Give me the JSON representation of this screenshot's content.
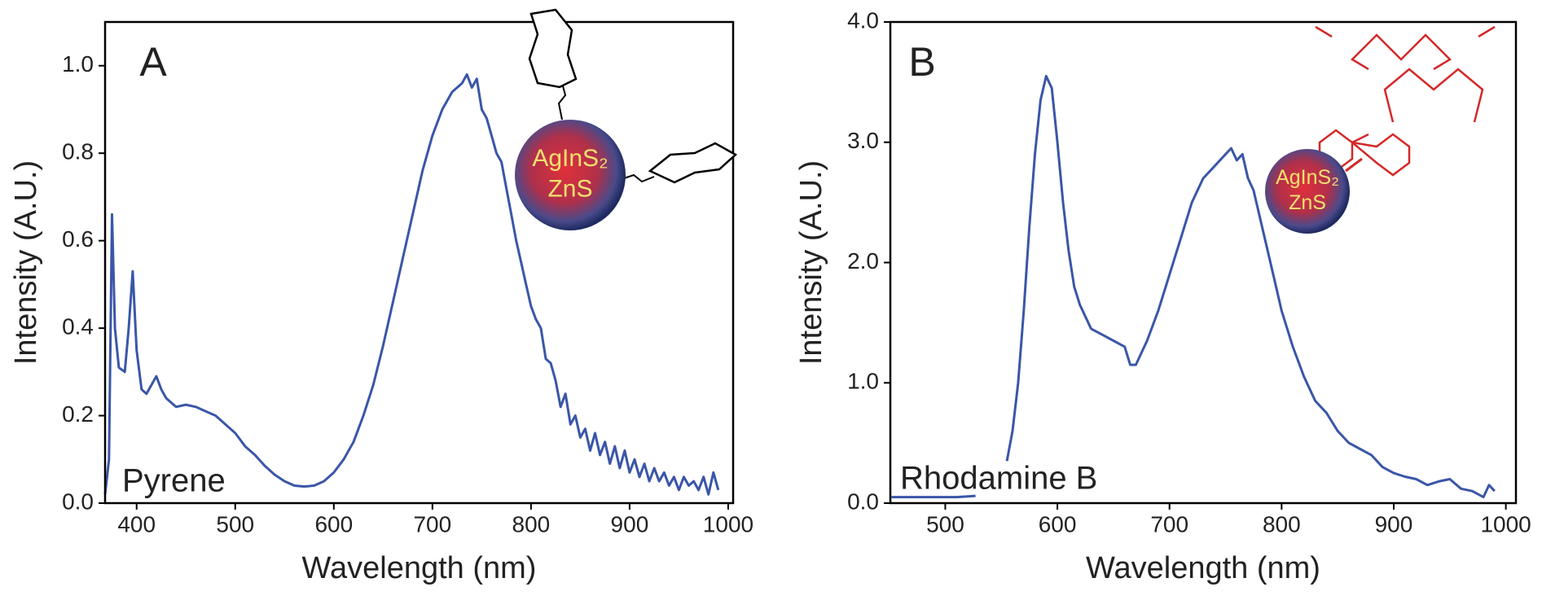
{
  "chart_data": [
    {
      "type": "line",
      "panel_label": "A",
      "dye_label": "Pyrene",
      "core_labels": [
        "AgInS₂",
        "ZnS"
      ],
      "xlabel": "Wavelength (nm)",
      "ylabel": "Intensity (A.U.)",
      "xlim": [
        368,
        1005
      ],
      "ylim": [
        0,
        1.1
      ],
      "xticks": [
        400,
        500,
        600,
        700,
        800,
        900,
        1000
      ],
      "yticks": [
        {
          "value": 0,
          "label": "0.0"
        },
        {
          "value": 0.2,
          "label": "0.2"
        },
        {
          "value": 0.4,
          "label": "0.4"
        },
        {
          "value": 0.6,
          "label": "0.6"
        },
        {
          "value": 0.8,
          "label": "0.8"
        },
        {
          "value": 1.0,
          "label": "1.0"
        }
      ],
      "series": [
        {
          "color": "#3a56a8",
          "x": [
            368,
            372,
            375,
            378,
            382,
            388,
            392,
            396,
            400,
            405,
            410,
            415,
            420,
            425,
            430,
            440,
            450,
            460,
            470,
            480,
            490,
            500,
            510,
            520,
            530,
            540,
            550,
            560,
            570,
            580,
            590,
            600,
            610,
            620,
            630,
            640,
            650,
            660,
            670,
            680,
            690,
            700,
            710,
            720,
            730,
            735,
            740,
            745,
            750,
            755,
            760,
            765,
            770,
            775,
            780,
            785,
            790,
            795,
            800,
            805,
            810,
            815,
            820,
            825,
            830,
            835,
            840,
            845,
            850,
            855,
            860,
            865,
            870,
            875,
            880,
            885,
            890,
            895,
            900,
            905,
            910,
            915,
            920,
            925,
            930,
            935,
            940,
            945,
            950,
            955,
            960,
            965,
            970,
            975,
            980,
            985,
            990
          ],
          "values": [
            0.02,
            0.1,
            0.66,
            0.4,
            0.31,
            0.3,
            0.4,
            0.53,
            0.35,
            0.26,
            0.25,
            0.27,
            0.29,
            0.26,
            0.24,
            0.22,
            0.225,
            0.22,
            0.21,
            0.2,
            0.18,
            0.16,
            0.13,
            0.11,
            0.085,
            0.065,
            0.05,
            0.04,
            0.038,
            0.04,
            0.05,
            0.07,
            0.1,
            0.14,
            0.2,
            0.27,
            0.36,
            0.46,
            0.56,
            0.66,
            0.76,
            0.84,
            0.9,
            0.94,
            0.96,
            0.98,
            0.95,
            0.97,
            0.9,
            0.88,
            0.84,
            0.8,
            0.78,
            0.72,
            0.66,
            0.6,
            0.55,
            0.5,
            0.45,
            0.42,
            0.4,
            0.33,
            0.32,
            0.28,
            0.22,
            0.25,
            0.18,
            0.2,
            0.15,
            0.17,
            0.12,
            0.16,
            0.11,
            0.14,
            0.09,
            0.13,
            0.08,
            0.12,
            0.07,
            0.1,
            0.06,
            0.09,
            0.05,
            0.08,
            0.05,
            0.07,
            0.04,
            0.06,
            0.03,
            0.06,
            0.04,
            0.05,
            0.03,
            0.06,
            0.02,
            0.07,
            0.03
          ]
        }
      ]
    },
    {
      "type": "line",
      "panel_label": "B",
      "dye_label": "Rhodamine B",
      "core_labels": [
        "AgInS₂",
        "ZnS"
      ],
      "xlabel": "Wavelength (nm)",
      "ylabel": "Intensity (A.U.)",
      "xlim": [
        451,
        1009
      ],
      "ylim": [
        0,
        4.0
      ],
      "xticks": [
        500,
        600,
        700,
        800,
        900,
        1000
      ],
      "yticks": [
        {
          "value": 0,
          "label": "0.0"
        },
        {
          "value": 1.0,
          "label": "1.0"
        },
        {
          "value": 2.0,
          "label": "2.0"
        },
        {
          "value": 3.0,
          "label": "3.0"
        },
        {
          "value": 4.0,
          "label": "4.0"
        }
      ],
      "series": [
        {
          "color": "#3a56a8",
          "x": [
            452,
            470,
            490,
            510,
            527,
            540,
            555,
            560,
            565,
            570,
            575,
            580,
            585,
            590,
            595,
            600,
            605,
            610,
            615,
            620,
            625,
            630,
            640,
            650,
            660,
            665,
            670,
            675,
            680,
            690,
            700,
            710,
            720,
            730,
            740,
            750,
            755,
            760,
            765,
            770,
            775,
            780,
            785,
            790,
            795,
            800,
            810,
            820,
            830,
            840,
            850,
            860,
            870,
            880,
            890,
            900,
            910,
            920,
            930,
            940,
            950,
            960,
            970,
            980,
            985,
            990
          ],
          "values": [
            0.05,
            0.05,
            0.05,
            0.05,
            0.06,
            null,
            0.35,
            0.6,
            1.0,
            1.6,
            2.3,
            2.9,
            3.35,
            3.55,
            3.45,
            3.0,
            2.5,
            2.1,
            1.8,
            1.65,
            1.55,
            1.45,
            1.4,
            1.35,
            1.3,
            1.15,
            1.15,
            1.25,
            1.35,
            1.6,
            1.9,
            2.2,
            2.5,
            2.7,
            2.8,
            2.9,
            2.95,
            2.85,
            2.9,
            2.7,
            2.6,
            2.4,
            2.2,
            2.0,
            1.8,
            1.6,
            1.3,
            1.05,
            0.85,
            0.75,
            0.6,
            0.5,
            0.45,
            0.4,
            0.3,
            0.25,
            0.22,
            0.2,
            0.15,
            0.18,
            0.2,
            0.12,
            0.1,
            0.05,
            0.15,
            0.1
          ]
        }
      ]
    }
  ]
}
